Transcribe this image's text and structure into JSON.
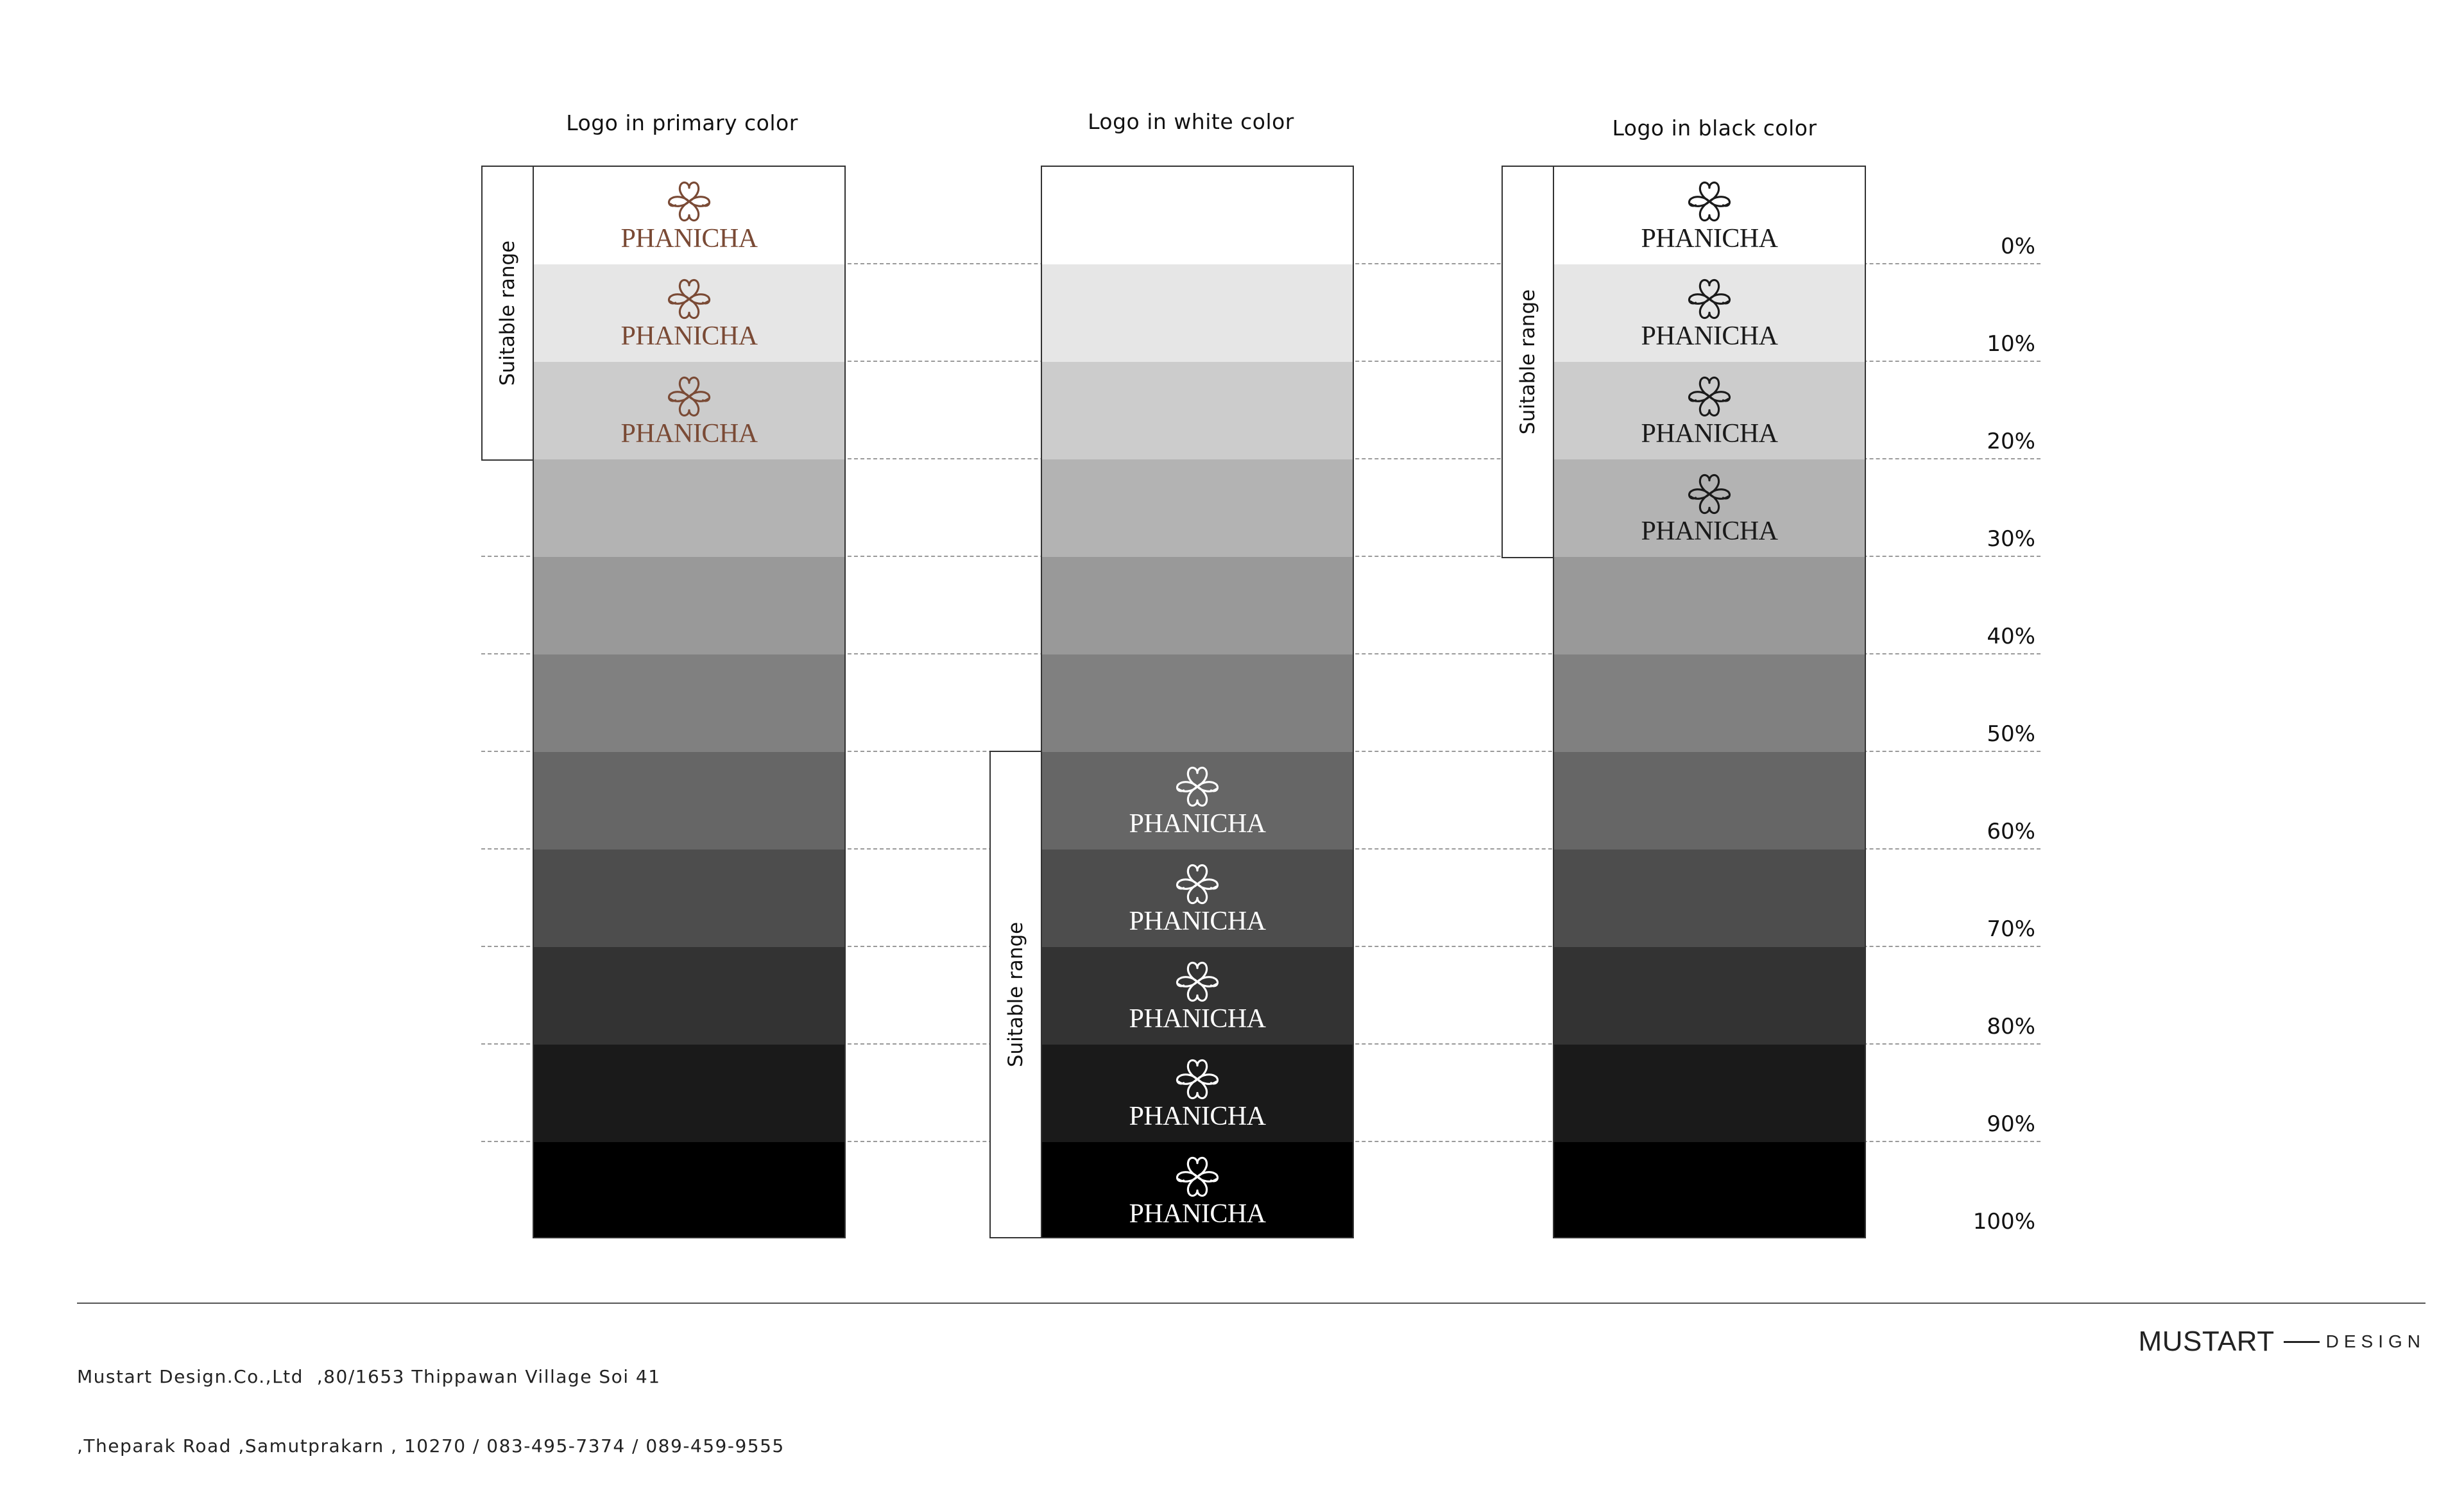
{
  "columns": [
    {
      "title": "Logo in primary color",
      "logo_variant": "primary",
      "logo_bands": [
        0,
        1,
        2
      ],
      "range_label": "Suitable range"
    },
    {
      "title": "Logo in white color",
      "logo_variant": "white",
      "logo_bands": [
        6,
        7,
        8,
        9,
        10
      ],
      "range_label": "Suitable range"
    },
    {
      "title": "Logo in black color",
      "logo_variant": "black",
      "logo_bands": [
        0,
        1,
        2,
        3
      ],
      "range_label": "Suitable range"
    }
  ],
  "logo": {
    "wordmark": "PHANICHA",
    "icon": "phanicha-flower-monogram-icon"
  },
  "colors": {
    "primary_logo": "#7a4a35",
    "white_logo": "#ffffff",
    "black_logo": "#1a1a1a"
  },
  "scale": {
    "labels": [
      "0%",
      "10%",
      "20%",
      "30%",
      "40%",
      "50%",
      "60%",
      "70%",
      "80%",
      "90%",
      "100%"
    ],
    "fills": [
      "#ffffff",
      "#e6e6e6",
      "#cccccc",
      "#b3b3b3",
      "#999999",
      "#808080",
      "#666666",
      "#4d4d4d",
      "#333333",
      "#1a1a1a",
      "#000000"
    ]
  },
  "footer": {
    "address_line1": "Mustart Design.Co.,Ltd  ,80/1653 Thippawan Village Soi 41",
    "address_line2": ",Theparak Road ,Samutprakarn , 10270 / 083-495-7374 / 089-459-9555",
    "brand_main": "MUSTART",
    "brand_sub": "DESIGN"
  }
}
